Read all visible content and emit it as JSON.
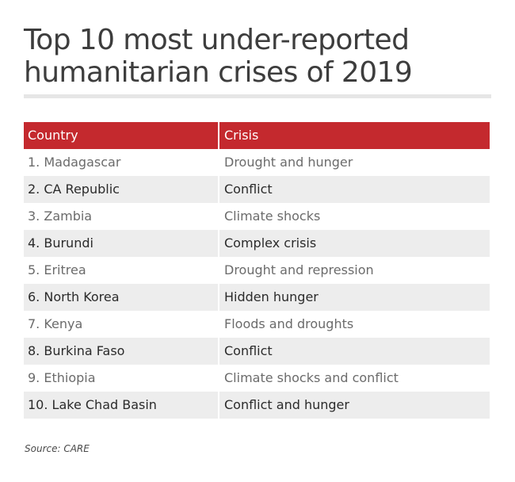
{
  "title": "Top 10 most under-reported humanitarian crises of 2019",
  "table": {
    "headers": [
      "Country",
      "Crisis"
    ],
    "rows": [
      {
        "country": "1. Madagascar",
        "crisis": "Drought and hunger"
      },
      {
        "country": "2. CA Republic",
        "crisis": "Conflict"
      },
      {
        "country": "3. Zambia",
        "crisis": "Climate shocks"
      },
      {
        "country": "4. Burundi",
        "crisis": "Complex crisis"
      },
      {
        "country": "5. Eritrea",
        "crisis": "Drought and repression"
      },
      {
        "country": "6. North Korea",
        "crisis": "Hidden hunger"
      },
      {
        "country": "7. Kenya",
        "crisis": "Floods and droughts"
      },
      {
        "country": "8. Burkina Faso",
        "crisis": "Conflict"
      },
      {
        "country": "9. Ethiopia",
        "crisis": "Climate shocks and conflict"
      },
      {
        "country": "10. Lake Chad Basin",
        "crisis": "Conflict and hunger"
      }
    ]
  },
  "source": "Source: CARE",
  "colors": {
    "header_bg": "#c4292e",
    "stripe_bg": "#ededed",
    "title_text": "#3d3d3d"
  }
}
